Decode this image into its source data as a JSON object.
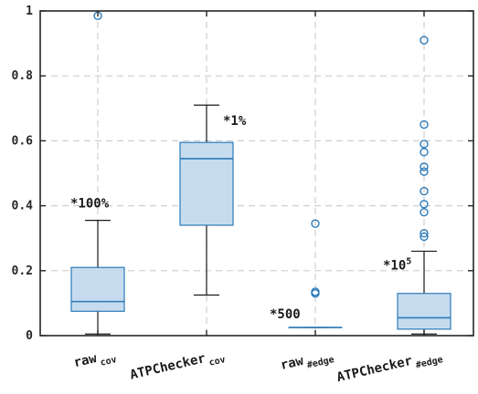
{
  "chart_data": {
    "type": "box",
    "title": "",
    "xlabel": "",
    "ylabel": "",
    "ylim": [
      0,
      1
    ],
    "y_ticks": [
      "0",
      "0.2",
      "0.4",
      "0.6",
      "0.8",
      "1"
    ],
    "grid": true,
    "colors": {
      "box_fill": "#c6dcee",
      "box_edge": "#2a7ab9",
      "whisker": "#1a1a1a",
      "grid": "#cfcfcf"
    },
    "boxes": [
      {
        "name": "raw",
        "subscript": "cov",
        "q1": 0.075,
        "median": 0.105,
        "q3": 0.21,
        "whisker_low": 0.005,
        "whisker_high": 0.355,
        "outliers": [
          0.985
        ],
        "annotation": "*100%",
        "annotation_sup": ""
      },
      {
        "name": "ATPChecker",
        "subscript": "cov",
        "q1": 0.34,
        "median": 0.545,
        "q3": 0.595,
        "whisker_low": 0.125,
        "whisker_high": 0.71,
        "outliers": [],
        "annotation": "*1%",
        "annotation_sup": ""
      },
      {
        "name": "raw",
        "subscript": "#edge",
        "q1": 0.025,
        "median": 0.025,
        "q3": 0.025,
        "whisker_low": 0.025,
        "whisker_high": 0.025,
        "outliers": [
          0.345,
          0.135,
          0.13
        ],
        "annotation": "*500",
        "annotation_sup": ""
      },
      {
        "name": "ATPChecker",
        "subscript": "#edge",
        "q1": 0.02,
        "median": 0.055,
        "q3": 0.13,
        "whisker_low": 0.005,
        "whisker_high": 0.26,
        "outliers": [
          0.91,
          0.65,
          0.59,
          0.565,
          0.52,
          0.505,
          0.445,
          0.405,
          0.38,
          0.315,
          0.305
        ],
        "annotation": "*10",
        "annotation_sup": "5"
      }
    ]
  }
}
